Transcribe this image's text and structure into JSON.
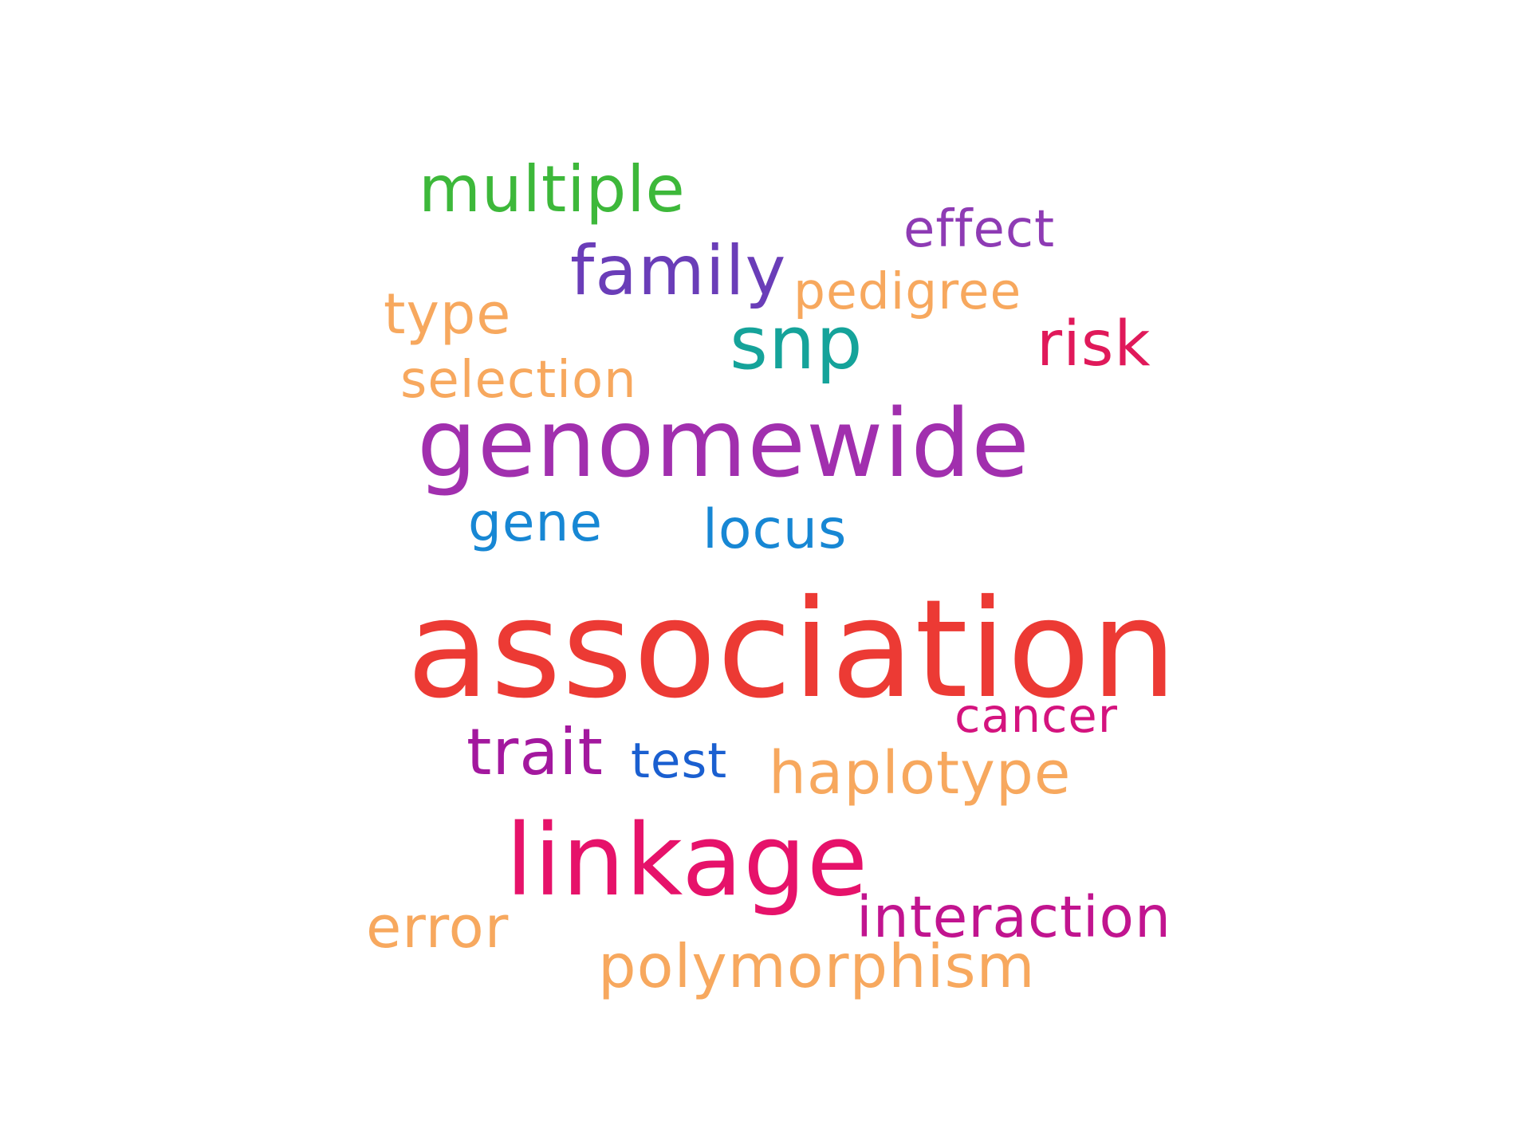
{
  "words": {
    "multiple": {
      "text": "multiple",
      "color": "#3db83a"
    },
    "effect": {
      "text": "effect",
      "color": "#8e3bb4"
    },
    "family": {
      "text": "family",
      "color": "#6a3db8"
    },
    "pedigree": {
      "text": "pedigree",
      "color": "#f7a85e"
    },
    "type": {
      "text": "type",
      "color": "#f7a85e"
    },
    "snp": {
      "text": "snp",
      "color": "#15a39a"
    },
    "risk": {
      "text": "risk",
      "color": "#e0195a"
    },
    "selection": {
      "text": "selection",
      "color": "#f7a85e"
    },
    "genomewide": {
      "text": "genomewide",
      "color": "#a12fae"
    },
    "gene": {
      "text": "gene",
      "color": "#1787d4"
    },
    "locus": {
      "text": "locus",
      "color": "#1787d4"
    },
    "association": {
      "text": "association",
      "color": "#ec3a34"
    },
    "cancer": {
      "text": "cancer",
      "color": "#d4137e"
    },
    "trait": {
      "text": "trait",
      "color": "#a3189e"
    },
    "test": {
      "text": "test",
      "color": "#1a5fd0"
    },
    "haplotype": {
      "text": "haplotype",
      "color": "#f7a85e"
    },
    "linkage": {
      "text": "linkage",
      "color": "#e6126a"
    },
    "interaction": {
      "text": "interaction",
      "color": "#c1148f"
    },
    "error": {
      "text": "error",
      "color": "#f7a85e"
    },
    "polymorphism": {
      "text": "polymorphism",
      "color": "#f7a85e"
    }
  }
}
